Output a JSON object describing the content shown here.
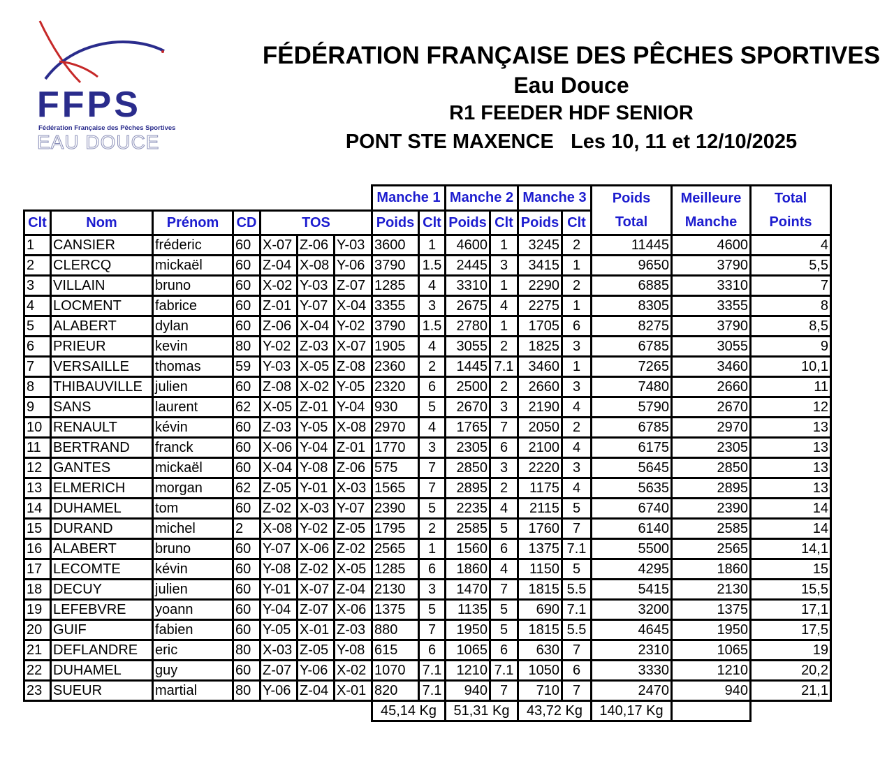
{
  "logo": {
    "text": "FFPS",
    "subtitle": "Fédération Française des Pêches Sportives",
    "tagline": "EAU DOUCE",
    "colors": {
      "blue": "#2a2c8c",
      "red": "#c62828"
    }
  },
  "header": {
    "federation": "FÉDÉRATION FRANÇAISE DES PÊCHES SPORTIVES",
    "division": "Eau Douce",
    "competition": "R1 FEEDER HDF SENIOR",
    "location": "PONT STE MAXENCE",
    "dates": "Les 10, 11 et 12/10/2025"
  },
  "table": {
    "group_headers": {
      "m1": "Manche 1",
      "m2": "Manche 2",
      "m3": "Manche 3",
      "poids_total_1": "Poids",
      "poids_total_2": "Total",
      "meilleure_1": "Meilleure",
      "meilleure_2": "Manche",
      "total_1": "Total",
      "total_2": "Points"
    },
    "columns": {
      "clt": "Clt",
      "nom": "Nom",
      "prenom": "Prénom",
      "cd": "CD",
      "tos": "TOS",
      "poids": "Poids",
      "clt_m": "Clt"
    },
    "rows": [
      [
        "1",
        "CANSIER",
        "fréderic",
        "60",
        "X-07",
        "Z-06",
        "Y-03",
        "3600",
        "1",
        "4600",
        "1",
        "3245",
        "2",
        "11445",
        "4600",
        "4"
      ],
      [
        "2",
        "CLERCQ",
        "mickaël",
        "60",
        "Z-04",
        "X-08",
        "Y-06",
        "3790",
        "1.5",
        "2445",
        "3",
        "3415",
        "1",
        "9650",
        "3790",
        "5,5"
      ],
      [
        "3",
        "VILLAIN",
        "bruno",
        "60",
        "X-02",
        "Y-03",
        "Z-07",
        "1285",
        "4",
        "3310",
        "1",
        "2290",
        "2",
        "6885",
        "3310",
        "7"
      ],
      [
        "4",
        "LOCMENT",
        "fabrice",
        "60",
        "Z-01",
        "Y-07",
        "X-04",
        "3355",
        "3",
        "2675",
        "4",
        "2275",
        "1",
        "8305",
        "3355",
        "8"
      ],
      [
        "5",
        "ALABERT",
        "dylan",
        "60",
        "Z-06",
        "X-04",
        "Y-02",
        "3790",
        "1.5",
        "2780",
        "1",
        "1705",
        "6",
        "8275",
        "3790",
        "8,5"
      ],
      [
        "6",
        "PRIEUR",
        "kevin",
        "80",
        "Y-02",
        "Z-03",
        "X-07",
        "1905",
        "4",
        "3055",
        "2",
        "1825",
        "3",
        "6785",
        "3055",
        "9"
      ],
      [
        "7",
        "VERSAILLE",
        "thomas",
        "59",
        "Y-03",
        "X-05",
        "Z-08",
        "2360",
        "2",
        "1445",
        "7.1",
        "3460",
        "1",
        "7265",
        "3460",
        "10,1"
      ],
      [
        "8",
        "THIBAUVILLE",
        "julien",
        "60",
        "Z-08",
        "X-02",
        "Y-05",
        "2320",
        "6",
        "2500",
        "2",
        "2660",
        "3",
        "7480",
        "2660",
        "11"
      ],
      [
        "9",
        "SANS",
        "laurent",
        "62",
        "X-05",
        "Z-01",
        "Y-04",
        "930",
        "5",
        "2670",
        "3",
        "2190",
        "4",
        "5790",
        "2670",
        "12"
      ],
      [
        "10",
        "RENAULT",
        "kévin",
        "60",
        "Z-03",
        "Y-05",
        "X-08",
        "2970",
        "4",
        "1765",
        "7",
        "2050",
        "2",
        "6785",
        "2970",
        "13"
      ],
      [
        "11",
        "BERTRAND",
        "franck",
        "60",
        "X-06",
        "Y-04",
        "Z-01",
        "1770",
        "3",
        "2305",
        "6",
        "2100",
        "4",
        "6175",
        "2305",
        "13"
      ],
      [
        "12",
        "GANTES",
        "mickaël",
        "60",
        "X-04",
        "Y-08",
        "Z-06",
        "575",
        "7",
        "2850",
        "3",
        "2220",
        "3",
        "5645",
        "2850",
        "13"
      ],
      [
        "13",
        "ELMERICH",
        "morgan",
        "62",
        "Z-05",
        "Y-01",
        "X-03",
        "1565",
        "7",
        "2895",
        "2",
        "1175",
        "4",
        "5635",
        "2895",
        "13"
      ],
      [
        "14",
        "DUHAMEL",
        "tom",
        "60",
        "Z-02",
        "X-03",
        "Y-07",
        "2390",
        "5",
        "2235",
        "4",
        "2115",
        "5",
        "6740",
        "2390",
        "14"
      ],
      [
        "15",
        "DURAND",
        "michel",
        "2",
        "X-08",
        "Y-02",
        "Z-05",
        "1795",
        "2",
        "2585",
        "5",
        "1760",
        "7",
        "6140",
        "2585",
        "14"
      ],
      [
        "16",
        "ALABERT",
        "bruno",
        "60",
        "Y-07",
        "X-06",
        "Z-02",
        "2565",
        "1",
        "1560",
        "6",
        "1375",
        "7.1",
        "5500",
        "2565",
        "14,1"
      ],
      [
        "17",
        "LECOMTE",
        "kévin",
        "60",
        "Y-08",
        "Z-02",
        "X-05",
        "1285",
        "6",
        "1860",
        "4",
        "1150",
        "5",
        "4295",
        "1860",
        "15"
      ],
      [
        "18",
        "DECUY",
        "julien",
        "60",
        "Y-01",
        "X-07",
        "Z-04",
        "2130",
        "3",
        "1470",
        "7",
        "1815",
        "5.5",
        "5415",
        "2130",
        "15,5"
      ],
      [
        "19",
        "LEFEBVRE",
        "yoann",
        "60",
        "Y-04",
        "Z-07",
        "X-06",
        "1375",
        "5",
        "1135",
        "5",
        "690",
        "7.1",
        "3200",
        "1375",
        "17,1"
      ],
      [
        "20",
        "GUIF",
        "fabien",
        "60",
        "Y-05",
        "X-01",
        "Z-03",
        "880",
        "7",
        "1950",
        "5",
        "1815",
        "5.5",
        "4645",
        "1950",
        "17,5"
      ],
      [
        "21",
        "DEFLANDRE",
        "eric",
        "80",
        "X-03",
        "Z-05",
        "Y-08",
        "615",
        "6",
        "1065",
        "6",
        "630",
        "7",
        "2310",
        "1065",
        "19"
      ],
      [
        "22",
        "DUHAMEL",
        "guy",
        "60",
        "Z-07",
        "Y-06",
        "X-02",
        "1070",
        "7.1",
        "1210",
        "7.1",
        "1050",
        "6",
        "3330",
        "1210",
        "20,2"
      ],
      [
        "23",
        "SUEUR",
        "martial",
        "80",
        "Y-06",
        "Z-04",
        "X-01",
        "820",
        "7.1",
        "940",
        "7",
        "710",
        "7",
        "2470",
        "940",
        "21,1"
      ]
    ],
    "totals": {
      "m1": "45,14 Kg",
      "m2": "51,31 Kg",
      "m3": "43,72 Kg",
      "total": "140,17 Kg"
    }
  }
}
